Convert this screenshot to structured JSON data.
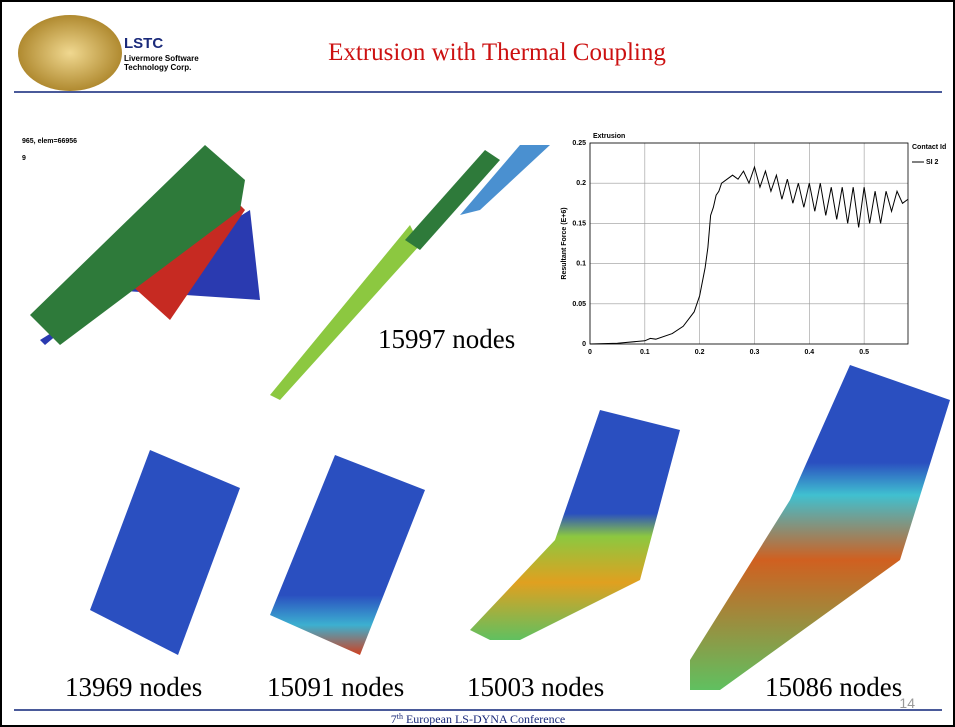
{
  "header": {
    "logo_title": "LSTC",
    "logo_line1": "Livermore Software",
    "logo_line2": "Technology Corp.",
    "title": "Extrusion with Thermal Coupling"
  },
  "model_info": {
    "line1": "965, elem=66956",
    "line2": "9"
  },
  "node_labels": [
    "15997 nodes",
    "13969 nodes",
    "15091 nodes",
    "15003 nodes",
    "15086 nodes"
  ],
  "footer": {
    "ordinal": "7",
    "suffix": "th",
    "rest": " European LS-DYNA Conference",
    "page_number": "14"
  },
  "chart_data": {
    "type": "line",
    "title": "Extrusion",
    "y_label": "Resultant Force (E+6)",
    "legend_title": "Contact Id",
    "x": [
      0,
      0.05,
      0.1,
      0.11,
      0.12,
      0.15,
      0.17,
      0.19,
      0.2,
      0.21,
      0.215,
      0.22,
      0.225,
      0.23,
      0.235,
      0.24,
      0.25,
      0.26,
      0.27,
      0.28,
      0.29,
      0.3,
      0.31,
      0.32,
      0.33,
      0.34,
      0.35,
      0.36,
      0.37,
      0.38,
      0.39,
      0.4,
      0.41,
      0.42,
      0.43,
      0.44,
      0.45,
      0.46,
      0.47,
      0.48,
      0.49,
      0.5,
      0.51,
      0.52,
      0.53,
      0.54,
      0.55,
      0.56,
      0.57,
      0.58
    ],
    "series": [
      {
        "name": "SI 2",
        "color": "#000000",
        "values": [
          0,
          0.001,
          0.004,
          0.007,
          0.006,
          0.013,
          0.022,
          0.04,
          0.06,
          0.095,
          0.12,
          0.16,
          0.17,
          0.185,
          0.19,
          0.2,
          0.205,
          0.21,
          0.205,
          0.215,
          0.2,
          0.22,
          0.195,
          0.215,
          0.19,
          0.21,
          0.18,
          0.205,
          0.175,
          0.2,
          0.17,
          0.2,
          0.165,
          0.2,
          0.16,
          0.195,
          0.155,
          0.195,
          0.15,
          0.195,
          0.145,
          0.195,
          0.15,
          0.19,
          0.15,
          0.19,
          0.165,
          0.19,
          0.175,
          0.18
        ]
      }
    ],
    "xlim": [
      0,
      0.58
    ],
    "ylim": [
      0,
      0.25
    ],
    "xticks": [
      0,
      0.1,
      0.2,
      0.3,
      0.4,
      0.5
    ],
    "yticks": [
      0,
      0.05,
      0.1,
      0.15,
      0.2,
      0.25
    ],
    "grid": true
  }
}
